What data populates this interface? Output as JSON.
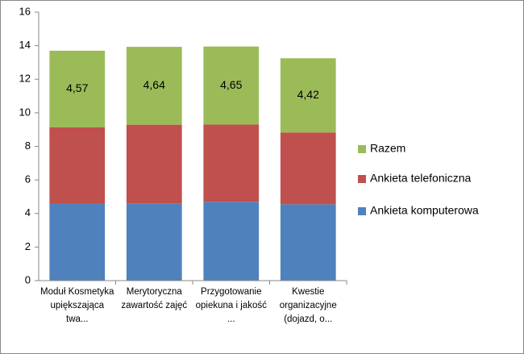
{
  "chart_data": {
    "type": "stacked_bar",
    "categories": [
      "Moduł Kosmetyka upiększająca twa...",
      "Merytoryczna zawartość zajęć",
      "Przygotowanie opiekuna i jakość ...",
      "Kwestie organizacyjne (dojazd, o..."
    ],
    "series": [
      {
        "name": "Ankieta komputerowa",
        "color": "#4f81bd",
        "values": [
          4.59,
          4.6,
          4.7,
          4.55
        ]
      },
      {
        "name": "Ankieta telefoniczna",
        "color": "#c0504d",
        "values": [
          4.54,
          4.69,
          4.6,
          4.28
        ]
      },
      {
        "name": "Razem",
        "color": "#9bbb59",
        "values": [
          4.57,
          4.64,
          4.65,
          4.42
        ],
        "value_labels": [
          "4,57",
          "4,64",
          "4,65",
          "4,42"
        ]
      }
    ],
    "ylim": [
      0,
      16
    ],
    "yticks": [
      0,
      2,
      4,
      6,
      8,
      10,
      12,
      14,
      16
    ],
    "grid": false,
    "legend": "right"
  }
}
